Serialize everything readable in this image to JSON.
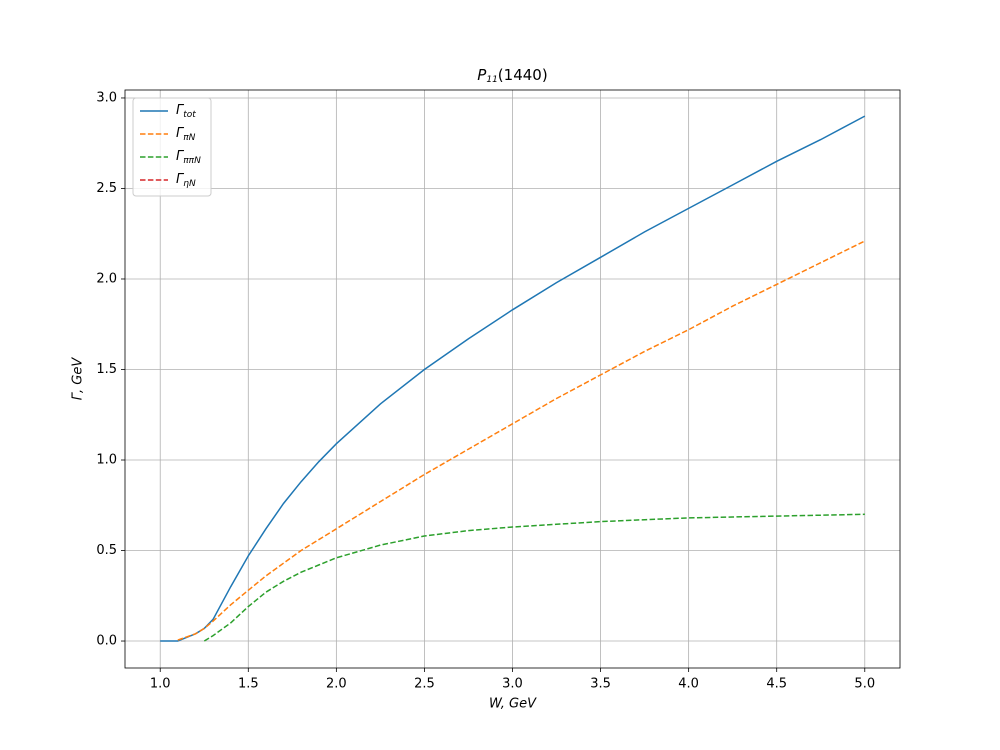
{
  "chart_data": {
    "type": "line",
    "title": "P11(1440)",
    "x_label": "W, GeV",
    "y_label": "Γ, GeV",
    "x": [
      1.0,
      1.1,
      1.2,
      1.25,
      1.3,
      1.4,
      1.5,
      1.6,
      1.7,
      1.8,
      1.9,
      2.0,
      2.25,
      2.5,
      2.75,
      3.0,
      3.25,
      3.5,
      3.75,
      4.0,
      4.25,
      4.5,
      4.75,
      5.0
    ],
    "series": [
      {
        "name": "Γtot",
        "color": "#1f77b4",
        "dashed": false,
        "values": [
          0,
          0,
          0.04,
          0.07,
          0.12,
          0.3,
          0.47,
          0.62,
          0.76,
          0.88,
          0.99,
          1.09,
          1.31,
          1.5,
          1.67,
          1.83,
          1.98,
          2.12,
          2.26,
          2.39,
          2.52,
          2.65,
          2.77,
          2.9
        ]
      },
      {
        "name": "ΓπN",
        "color": "#ff7f0e",
        "dashed": true,
        "values": [
          null,
          0.005,
          0.04,
          0.07,
          0.11,
          0.2,
          0.28,
          0.36,
          0.43,
          0.5,
          0.56,
          0.62,
          0.77,
          0.92,
          1.06,
          1.2,
          1.34,
          1.47,
          1.6,
          1.72,
          1.85,
          1.97,
          2.09,
          2.21
        ]
      },
      {
        "name": "ΓππN",
        "color": "#2ca02c",
        "dashed": true,
        "values": [
          null,
          null,
          null,
          0,
          0.03,
          0.1,
          0.19,
          0.27,
          0.33,
          0.38,
          0.42,
          0.46,
          0.53,
          0.58,
          0.61,
          0.63,
          0.645,
          0.66,
          0.67,
          0.68,
          0.685,
          0.69,
          0.695,
          0.7
        ]
      },
      {
        "name": "ΓηN",
        "color": "#d62728",
        "dashed": true,
        "values": [
          null,
          null,
          null,
          null,
          null,
          null,
          null,
          null,
          null,
          null,
          null,
          null,
          null,
          null,
          null,
          null,
          null,
          null,
          null,
          null,
          null,
          null,
          null,
          null
        ]
      }
    ],
    "xlim": [
      0.8,
      5.2
    ],
    "xticks": [
      {
        "value": 1,
        "label": "1.0"
      },
      1.5,
      {
        "value": 2,
        "label": "2.0"
      },
      2.5,
      {
        "value": 3,
        "label": "3.0"
      },
      3.5,
      {
        "value": 4,
        "label": "4.0"
      },
      4.5,
      {
        "value": 5,
        "label": "5.0"
      }
    ],
    "ylim": [
      -0.149,
      3.044
    ],
    "yticks": [
      {
        "value": 0,
        "label": "0.0"
      },
      0.5,
      {
        "value": 1,
        "label": "1.0"
      },
      1.5,
      {
        "value": 2,
        "label": "2.0"
      },
      2.5,
      {
        "value": 3,
        "label": "3.0"
      }
    ],
    "grid": true,
    "legend": "upper left"
  }
}
